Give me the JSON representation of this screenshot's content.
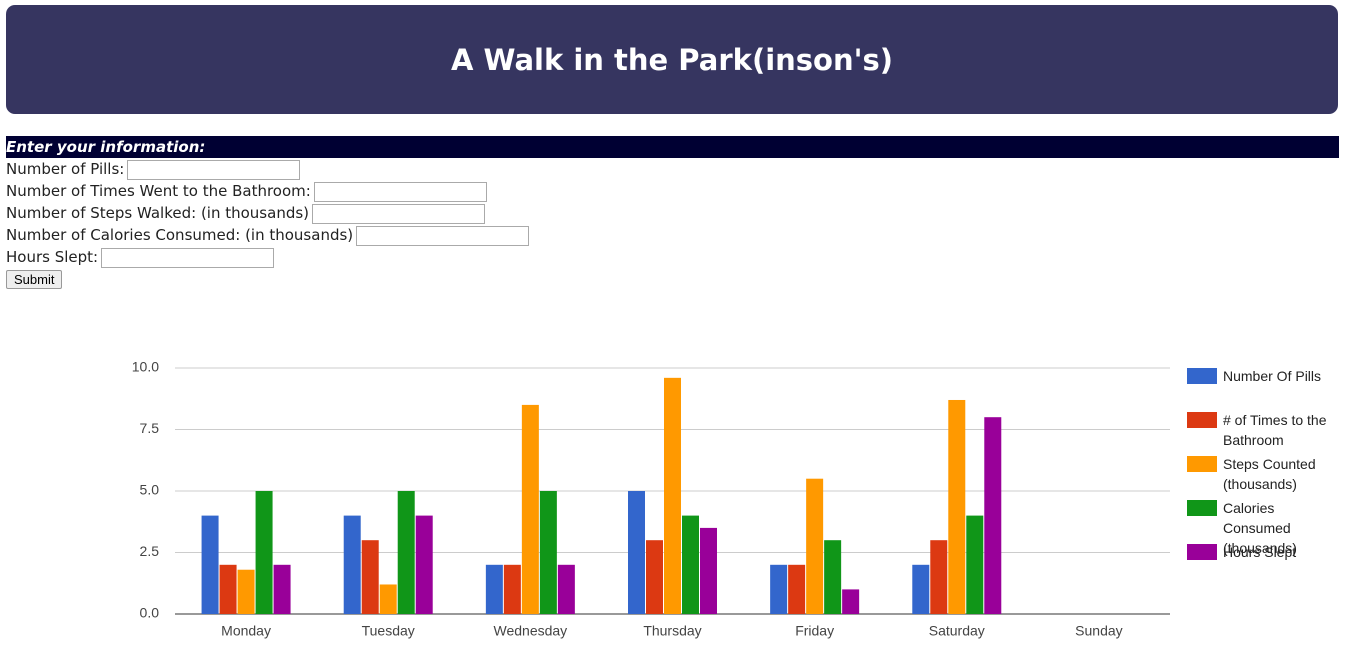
{
  "header": {
    "title": "A Walk in the Park(inson's)"
  },
  "form": {
    "heading": "Enter your information:",
    "fields": [
      {
        "label": "Number of Pills:"
      },
      {
        "label": "Number of Times Went to the Bathroom:"
      },
      {
        "label": "Number of Steps Walked: (in thousands)"
      },
      {
        "label": "Number of Calories Consumed: (in thousands)"
      },
      {
        "label": "Hours Slept:"
      }
    ],
    "button": "Submit"
  },
  "chart_data": {
    "type": "bar",
    "categories": [
      "Monday",
      "Tuesday",
      "Wednesday",
      "Thursday",
      "Friday",
      "Saturday",
      "Sunday"
    ],
    "series": [
      {
        "name": "Number Of Pills",
        "color": "#3366cc",
        "values": [
          4,
          4,
          2,
          5,
          2,
          2,
          null
        ]
      },
      {
        "name": "# of Times to the Bathroom",
        "color": "#dc3912",
        "values": [
          2,
          3,
          2,
          3,
          2,
          3,
          null
        ]
      },
      {
        "name": "Steps Counted (thousands)",
        "color": "#ff9900",
        "values": [
          1.8,
          1.2,
          8.5,
          9.6,
          5.5,
          8.7,
          null
        ]
      },
      {
        "name": "Calories Consumed (thousands)",
        "color": "#109618",
        "values": [
          5,
          5,
          5,
          4,
          3,
          4,
          null
        ]
      },
      {
        "name": "Hours Slept",
        "color": "#990099",
        "values": [
          2,
          4,
          2,
          3.5,
          1,
          8,
          null
        ]
      }
    ],
    "ylim": [
      0,
      10
    ],
    "yticks": [
      {
        "value": 0,
        "label": "0.0"
      },
      {
        "value": 2.5,
        "label": "2.5"
      },
      {
        "value": 5,
        "label": "5.0"
      },
      {
        "value": 7.5,
        "label": "7.5"
      },
      {
        "value": 10,
        "label": "10.0"
      }
    ],
    "grid": true,
    "legend": "right"
  }
}
